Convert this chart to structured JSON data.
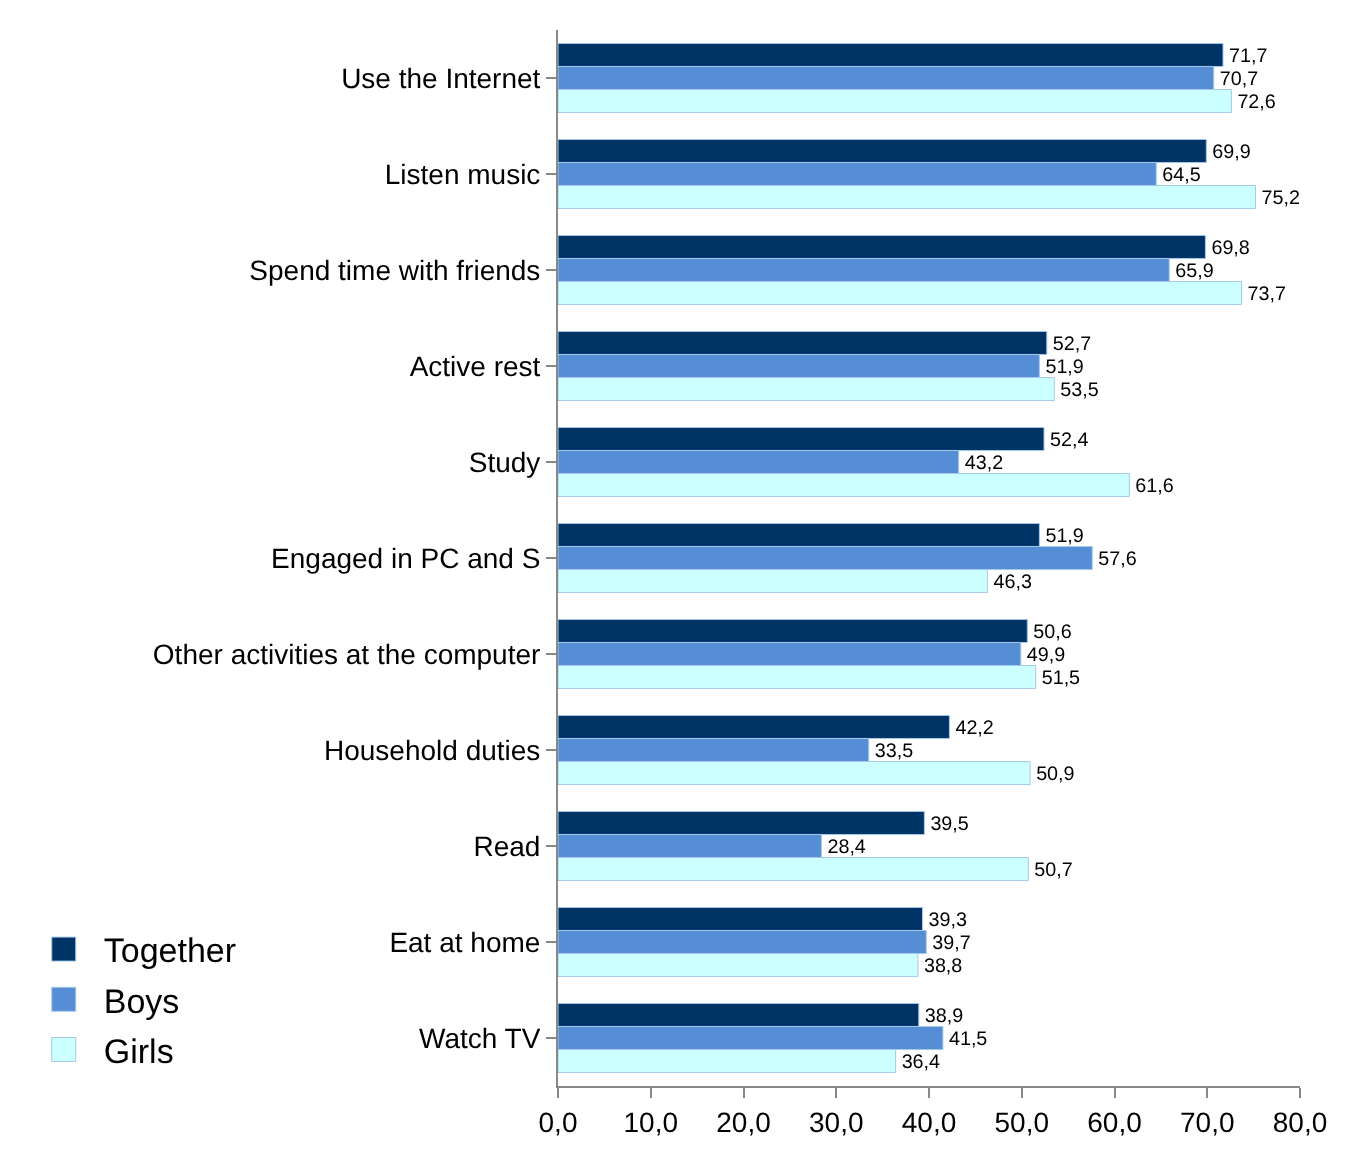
{
  "chart_data": {
    "type": "bar",
    "orientation": "horizontal",
    "categories": [
      "Use the Internet",
      "Listen music",
      "Spend time with friends",
      "Active rest",
      "Study",
      "Engaged in PC and S",
      "Other activities at the computer",
      "Household duties",
      "Read",
      "Eat at home",
      "Watch TV"
    ],
    "series": [
      {
        "name": "Together",
        "color": "#003366",
        "values": [
          71.7,
          69.9,
          69.8,
          52.7,
          52.4,
          51.9,
          50.6,
          42.2,
          39.5,
          39.3,
          38.9
        ],
        "value_labels": [
          "71,7",
          "69,9",
          "69,8",
          "52,7",
          "52,4",
          "51,9",
          "50,6",
          "42,2",
          "39,5",
          "39,3",
          "38,9"
        ]
      },
      {
        "name": "Boys",
        "color": "#558ed5",
        "values": [
          70.7,
          64.5,
          65.9,
          51.9,
          43.2,
          57.6,
          49.9,
          33.5,
          28.4,
          39.7,
          41.5
        ],
        "value_labels": [
          "70,7",
          "64,5",
          "65,9",
          "51,9",
          "43,2",
          "57,6",
          "49,9",
          "33,5",
          "28,4",
          "39,7",
          "41,5"
        ]
      },
      {
        "name": "Girls",
        "color": "#ccffff",
        "values": [
          72.6,
          75.2,
          73.7,
          53.5,
          61.6,
          46.3,
          51.5,
          50.9,
          50.7,
          38.8,
          36.4
        ],
        "value_labels": [
          "72,6",
          "75,2",
          "73,7",
          "53,5",
          "61,6",
          "46,3",
          "51,5",
          "50,9",
          "50,7",
          "38,8",
          "36,4"
        ]
      }
    ],
    "xlim": [
      0,
      80
    ],
    "xticks": [
      {
        "value": 0,
        "label": "0,0"
      },
      {
        "value": 10,
        "label": "10,0"
      },
      {
        "value": 20,
        "label": "20,0"
      },
      {
        "value": 30,
        "label": "30,0"
      },
      {
        "value": 40,
        "label": "40,0"
      },
      {
        "value": 50,
        "label": "50,0"
      },
      {
        "value": 60,
        "label": "60,0"
      },
      {
        "value": 70,
        "label": "70,0"
      },
      {
        "value": 80,
        "label": "80,0"
      }
    ],
    "grid": false,
    "legend": "bottom left"
  }
}
